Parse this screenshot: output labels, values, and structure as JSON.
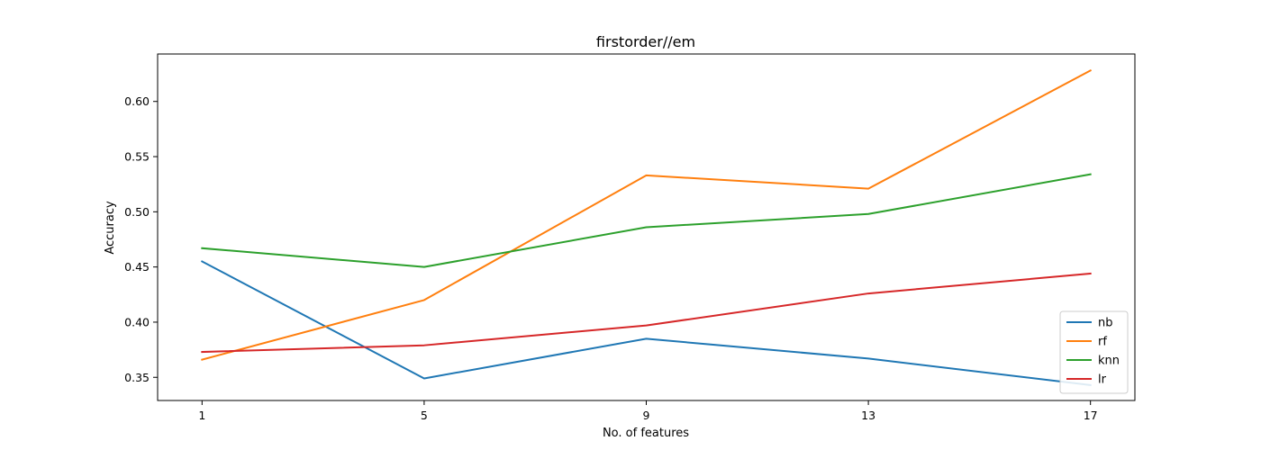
{
  "chart_data": {
    "type": "line",
    "title": "firstorder//em",
    "xlabel": "No. of features",
    "ylabel": "Accuracy",
    "categories": [
      1,
      5,
      9,
      13,
      17
    ],
    "x_ticks": [
      "1",
      "5",
      "9",
      "13",
      "17"
    ],
    "ylim": [
      0.329,
      0.643
    ],
    "y_ticks": [
      0.35,
      0.4,
      0.45,
      0.5,
      0.55,
      0.6
    ],
    "y_tick_labels": [
      "0.35",
      "0.40",
      "0.45",
      "0.50",
      "0.55",
      "0.60"
    ],
    "grid": false,
    "legend_position": "lower-right",
    "series": [
      {
        "name": "nb",
        "color": "#1f77b4",
        "values": [
          0.455,
          0.349,
          0.385,
          0.367,
          0.343
        ]
      },
      {
        "name": "rf",
        "color": "#ff7f0e",
        "values": [
          0.366,
          0.42,
          0.533,
          0.521,
          0.628
        ]
      },
      {
        "name": "knn",
        "color": "#2ca02c",
        "values": [
          0.467,
          0.45,
          0.486,
          0.498,
          0.534
        ]
      },
      {
        "name": "lr",
        "color": "#d62728",
        "values": [
          0.373,
          0.379,
          0.397,
          0.426,
          0.444
        ]
      }
    ]
  }
}
